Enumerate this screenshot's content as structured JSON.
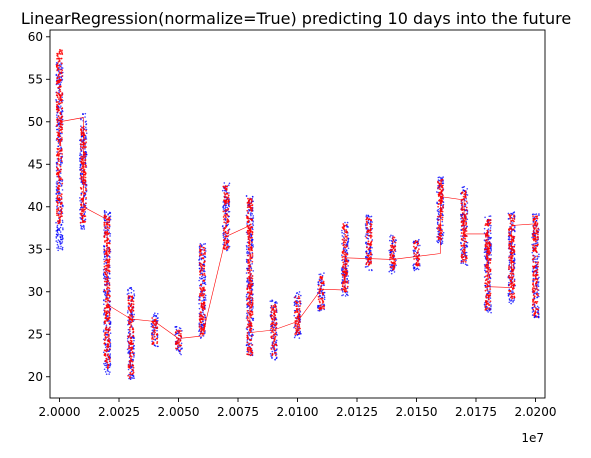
{
  "chart_data": {
    "type": "scatter",
    "title": "LinearRegression(normalize=True) predicting 10 days into the future",
    "xlabel": "",
    "ylabel": "",
    "x_offset_label": "1e7",
    "xlim": [
      19996000,
      20204000
    ],
    "ylim": [
      17.5,
      60.8
    ],
    "x_ticks": [
      20000000,
      20025000,
      20050000,
      20075000,
      20100000,
      20125000,
      20150000,
      20175000,
      20200000
    ],
    "x_tick_labels": [
      "2.0000",
      "2.0025",
      "2.0050",
      "2.0075",
      "2.0100",
      "2.0125",
      "2.0150",
      "2.0175",
      "2.0200"
    ],
    "y_ticks": [
      20,
      25,
      30,
      35,
      40,
      45,
      50,
      55,
      60
    ],
    "y_tick_labels": [
      "20",
      "25",
      "30",
      "35",
      "40",
      "45",
      "50",
      "55",
      "60"
    ],
    "grid": false,
    "legend": "none",
    "colors": {
      "actual": "#0000ff",
      "predicted": "#ff0000",
      "trend_line": "#ff0000"
    },
    "series": [
      {
        "role": "actual",
        "clusters": [
          {
            "x": 20000000,
            "lo": 34.8,
            "hi": 57.0
          },
          {
            "x": 20010000,
            "lo": 37.2,
            "hi": 51.0
          },
          {
            "x": 20020000,
            "lo": 20.3,
            "hi": 39.7
          },
          {
            "x": 20030000,
            "lo": 19.5,
            "hi": 30.5
          },
          {
            "x": 20040000,
            "lo": 23.5,
            "hi": 27.5
          },
          {
            "x": 20050000,
            "lo": 22.5,
            "hi": 26.0
          },
          {
            "x": 20060000,
            "lo": 24.5,
            "hi": 35.8
          },
          {
            "x": 20070000,
            "lo": 34.8,
            "hi": 42.8
          },
          {
            "x": 20080000,
            "lo": 22.5,
            "hi": 41.5
          },
          {
            "x": 20090000,
            "lo": 22.0,
            "hi": 29.2
          },
          {
            "x": 20100000,
            "lo": 24.5,
            "hi": 30.0
          },
          {
            "x": 20110000,
            "lo": 27.5,
            "hi": 32.2
          },
          {
            "x": 20120000,
            "lo": 29.5,
            "hi": 38.3
          },
          {
            "x": 20130000,
            "lo": 32.5,
            "hi": 39.0
          },
          {
            "x": 20140000,
            "lo": 32.0,
            "hi": 36.7
          },
          {
            "x": 20150000,
            "lo": 32.5,
            "hi": 36.2
          },
          {
            "x": 20160000,
            "lo": 35.5,
            "hi": 43.5
          },
          {
            "x": 20170000,
            "lo": 33.0,
            "hi": 42.5
          },
          {
            "x": 20180000,
            "lo": 27.5,
            "hi": 39.0
          },
          {
            "x": 20190000,
            "lo": 28.5,
            "hi": 39.5
          },
          {
            "x": 20200000,
            "lo": 26.8,
            "hi": 39.2
          }
        ]
      },
      {
        "role": "predicted",
        "clusters": [
          {
            "x": 20000000,
            "lo": 38.0,
            "hi": 58.5
          },
          {
            "x": 20010000,
            "lo": 38.0,
            "hi": 49.5
          },
          {
            "x": 20020000,
            "lo": 21.0,
            "hi": 39.0
          },
          {
            "x": 20030000,
            "lo": 19.8,
            "hi": 29.5
          },
          {
            "x": 20040000,
            "lo": 23.8,
            "hi": 27.0
          },
          {
            "x": 20050000,
            "lo": 23.0,
            "hi": 25.5
          },
          {
            "x": 20060000,
            "lo": 25.0,
            "hi": 35.5
          },
          {
            "x": 20070000,
            "lo": 35.0,
            "hi": 42.5
          },
          {
            "x": 20080000,
            "lo": 22.5,
            "hi": 41.0
          },
          {
            "x": 20090000,
            "lo": 22.5,
            "hi": 28.5
          },
          {
            "x": 20100000,
            "lo": 25.0,
            "hi": 29.5
          },
          {
            "x": 20110000,
            "lo": 27.8,
            "hi": 31.8
          },
          {
            "x": 20120000,
            "lo": 30.0,
            "hi": 38.0
          },
          {
            "x": 20130000,
            "lo": 33.0,
            "hi": 38.8
          },
          {
            "x": 20140000,
            "lo": 32.5,
            "hi": 36.5
          },
          {
            "x": 20150000,
            "lo": 33.0,
            "hi": 36.0
          },
          {
            "x": 20160000,
            "lo": 36.0,
            "hi": 43.2
          },
          {
            "x": 20170000,
            "lo": 33.5,
            "hi": 42.0
          },
          {
            "x": 20180000,
            "lo": 27.8,
            "hi": 38.5
          },
          {
            "x": 20190000,
            "lo": 29.0,
            "hi": 39.2
          },
          {
            "x": 20200000,
            "lo": 27.0,
            "hi": 39.0
          }
        ]
      }
    ],
    "trend_line": {
      "role": "predicted-trend",
      "points": [
        [
          20000000,
          50.0
        ],
        [
          20010000,
          50.5
        ],
        [
          20010000,
          40.0
        ],
        [
          20020000,
          38.5
        ],
        [
          20020000,
          28.5
        ],
        [
          20030000,
          26.8
        ],
        [
          20040000,
          26.5
        ],
        [
          20050000,
          24.5
        ],
        [
          20060000,
          24.8
        ],
        [
          20070000,
          36.5
        ],
        [
          20080000,
          37.8
        ],
        [
          20080000,
          25.2
        ],
        [
          20090000,
          25.5
        ],
        [
          20100000,
          26.5
        ],
        [
          20110000,
          30.3
        ],
        [
          20120000,
          30.2
        ],
        [
          20120000,
          34.0
        ],
        [
          20140000,
          33.8
        ],
        [
          20160000,
          34.5
        ],
        [
          20160000,
          41.2
        ],
        [
          20170000,
          40.8
        ],
        [
          20170000,
          36.8
        ],
        [
          20180000,
          36.8
        ],
        [
          20180000,
          30.6
        ],
        [
          20190000,
          30.5
        ],
        [
          20190000,
          37.8
        ],
        [
          20200000,
          38.0
        ]
      ]
    }
  }
}
